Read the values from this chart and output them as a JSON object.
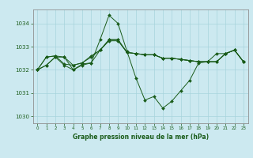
{
  "title": "Graphe pression niveau de la mer (hPa)",
  "bg_color": "#cce9f0",
  "grid_color": "#a8d4dc",
  "line_color": "#1a5c1a",
  "xlim": [
    -0.5,
    23.5
  ],
  "ylim": [
    1029.7,
    1034.6
  ],
  "yticks": [
    1030,
    1031,
    1032,
    1033,
    1034
  ],
  "xticks": [
    0,
    1,
    2,
    3,
    4,
    5,
    6,
    7,
    8,
    9,
    10,
    11,
    12,
    13,
    14,
    15,
    16,
    17,
    18,
    19,
    20,
    21,
    22,
    23
  ],
  "series": [
    [
      1032.0,
      1032.2,
      1032.55,
      1032.2,
      1032.0,
      1032.25,
      1032.3,
      1033.3,
      1034.35,
      1034.0,
      1032.8,
      1031.65,
      1030.7,
      1030.85,
      1030.35,
      1030.65,
      1031.1,
      1031.55,
      1032.3,
      1032.35,
      1032.7,
      1032.7,
      1032.85,
      1032.35
    ],
    [
      1032.0,
      1032.55,
      1032.6,
      1032.55,
      1032.2,
      1032.3,
      1032.55,
      1032.85,
      1033.3,
      1033.3,
      1032.75,
      1032.7,
      1032.65,
      1032.65,
      1032.5,
      1032.5,
      1032.45,
      1032.4,
      1032.35,
      1032.35,
      1032.35,
      1032.7,
      1032.85,
      1032.35
    ],
    [
      1032.0,
      1032.55,
      1032.6,
      1032.25,
      1032.2,
      1032.3,
      1032.6,
      1032.85,
      1033.25,
      1033.25,
      1032.75,
      1032.7,
      1032.65,
      1032.65,
      1032.5,
      1032.5,
      1032.45,
      1032.4,
      1032.35,
      1032.35,
      1032.35,
      1032.7,
      1032.85,
      1032.35
    ],
    [
      1032.0,
      1032.2,
      1032.55,
      1032.55,
      1032.0,
      1032.2,
      1032.3,
      1032.85,
      1033.3,
      1033.3,
      1032.75,
      1032.7,
      1032.65,
      1032.65,
      1032.5,
      1032.5,
      1032.45,
      1032.4,
      1032.35,
      1032.35,
      1032.35,
      1032.7,
      1032.85,
      1032.35
    ]
  ]
}
